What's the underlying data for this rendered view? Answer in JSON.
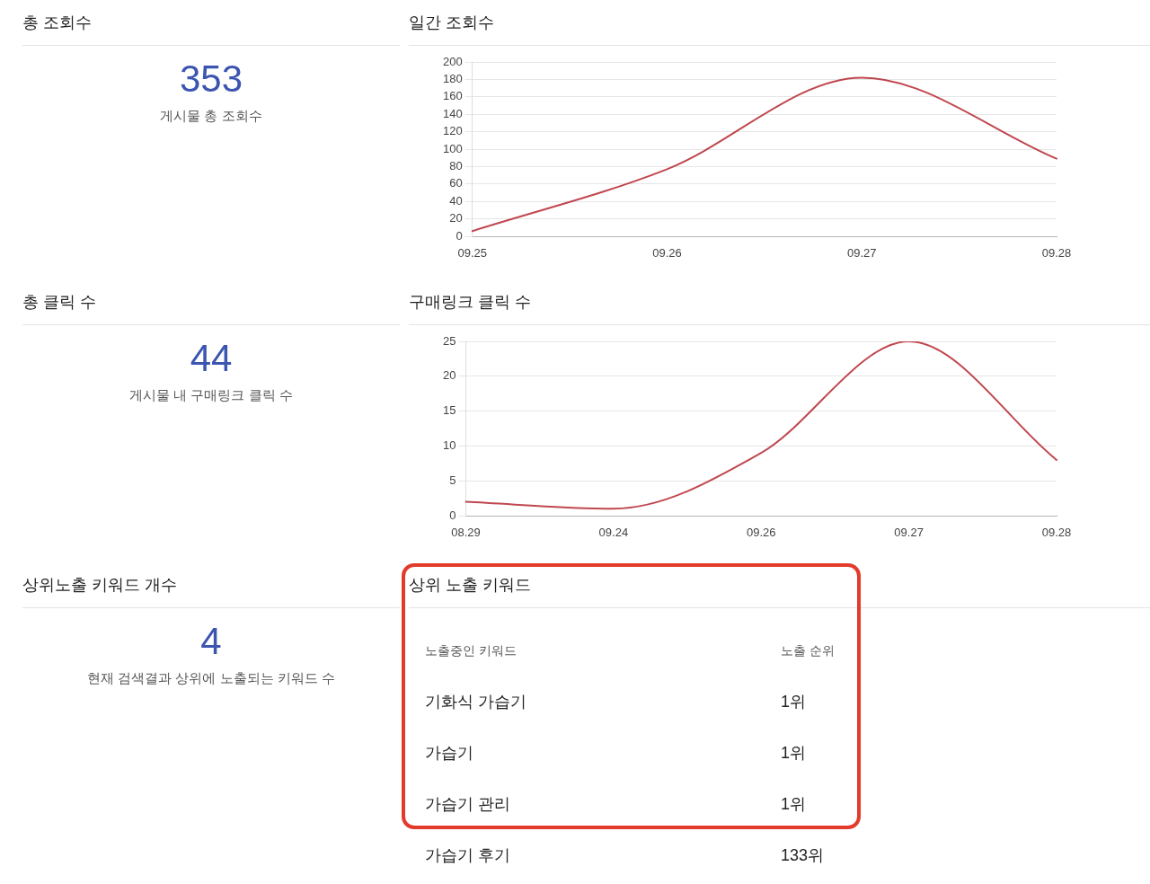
{
  "chart_data": [
    {
      "type": "other",
      "title": "총 조회수",
      "annotations": [
        "353"
      ],
      "subtitle": "게시물 총 조회수"
    },
    {
      "type": "line",
      "title": "일간 조회수",
      "categories": [
        "09.25",
        "09.26",
        "09.27",
        "09.28"
      ],
      "series": [
        {
          "color": "#c0474f",
          "values": [
            6,
            77,
            182,
            89
          ]
        }
      ],
      "ylim": [
        0,
        200
      ],
      "yticks": [
        0,
        20,
        40,
        60,
        80,
        100,
        120,
        140,
        160,
        180,
        200
      ],
      "grid": "y",
      "marker": "none",
      "line_style": "solid"
    },
    {
      "type": "other",
      "title": "총 클릭 수",
      "annotations": [
        "44"
      ],
      "subtitle": "게시물 내 구매링크 클릭 수"
    },
    {
      "type": "line",
      "title": "구매링크 클릭 수",
      "categories": [
        "08.29",
        "09.24",
        "09.26",
        "09.27",
        "09.28"
      ],
      "series": [
        {
          "color": "#c0474f",
          "values": [
            2,
            1,
            9,
            25,
            8
          ]
        }
      ],
      "ylim": [
        0,
        25
      ],
      "yticks": [
        0,
        5,
        10,
        15,
        20,
        25
      ],
      "grid": "y",
      "marker": "none",
      "line_style": "solid"
    },
    {
      "type": "other",
      "title": "상위노출 키워드 개수",
      "annotations": [
        "4"
      ],
      "subtitle": "현재 검색결과 상위에 노출되는 키워드 수"
    },
    {
      "type": "other",
      "title": "상위 노출 키워드",
      "annotations": [
        "노출중인 키워드",
        "노출 순위",
        "기화식 가습기",
        "1위",
        "가습기",
        "1위",
        "가습기 관리",
        "1위",
        "가습기 후기",
        "133위"
      ]
    }
  ]
}
